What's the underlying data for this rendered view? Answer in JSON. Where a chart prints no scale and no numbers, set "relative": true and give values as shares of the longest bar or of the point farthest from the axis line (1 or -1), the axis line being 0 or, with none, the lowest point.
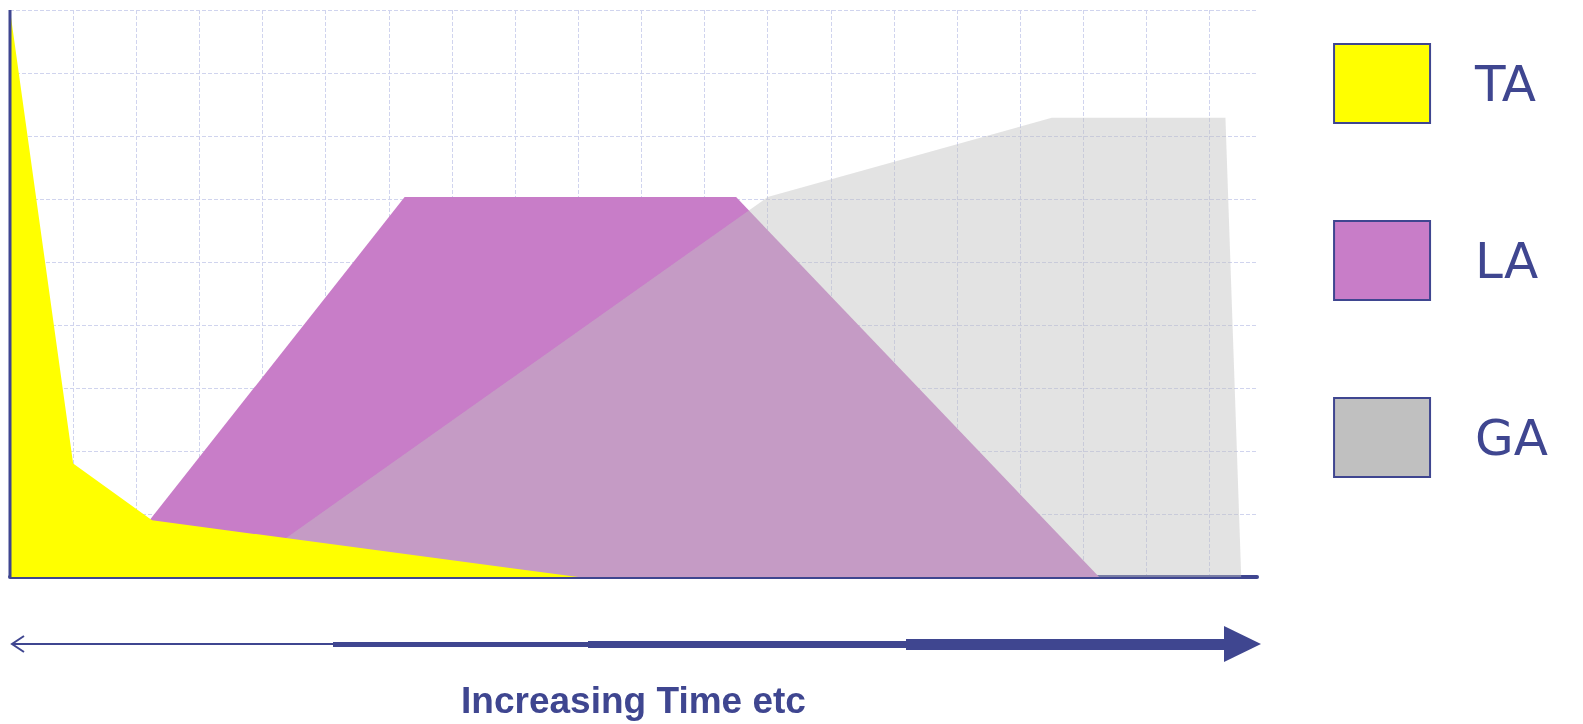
{
  "chart_data": {
    "type": "area",
    "xlabel": "Increasing Time etc",
    "relative": true,
    "grid": true,
    "legend": "right",
    "marker": "none",
    "categories": [
      null,
      null,
      null,
      null,
      null,
      null,
      null,
      null,
      null,
      null,
      null,
      null,
      null,
      null,
      null,
      null,
      null,
      null,
      null,
      null,
      null,
      null,
      null,
      null,
      null,
      null,
      null,
      null,
      null,
      null,
      null,
      null,
      null,
      null,
      null,
      null,
      null,
      null,
      null,
      null,
      null,
      null,
      null,
      null,
      null,
      null,
      null,
      null,
      null,
      null,
      null,
      null,
      null,
      null,
      null,
      null,
      null,
      null,
      null,
      null,
      null,
      null,
      null,
      null,
      null,
      null,
      null,
      null,
      null,
      null,
      null,
      null,
      null,
      null,
      null,
      null,
      null,
      null,
      null,
      null
    ],
    "series": [
      {
        "name": "TA",
        "color": "#ffff00",
        "values": [
          1,
          null,
          null,
          null,
          0.2,
          null,
          null,
          null,
          null,
          0.1,
          null,
          null,
          null,
          null,
          null,
          null,
          null,
          null,
          null,
          null,
          null,
          null,
          null,
          null,
          null,
          null,
          null,
          null,
          null,
          null,
          null,
          null,
          null,
          null,
          null,
          null,
          0,
          null,
          null,
          null,
          null,
          null,
          null,
          null,
          null,
          null,
          null,
          null,
          null,
          null,
          null,
          null,
          null,
          null,
          null,
          null,
          null,
          null,
          null,
          null,
          null,
          null,
          null,
          null,
          null,
          null,
          null,
          null,
          null,
          null,
          null,
          null,
          null,
          null,
          null,
          null,
          null,
          null,
          null,
          null
        ]
      },
      {
        "name": "LA",
        "color": "#c87dc8",
        "values": [
          null,
          null,
          null,
          null,
          null,
          null,
          0,
          null,
          null,
          null,
          null,
          null,
          null,
          null,
          null,
          null,
          null,
          null,
          null,
          null,
          null,
          null,
          null,
          null,
          null,
          0.67,
          null,
          null,
          null,
          null,
          null,
          null,
          null,
          null,
          null,
          null,
          null,
          null,
          null,
          null,
          null,
          null,
          null,
          null,
          null,
          null,
          0.67,
          null,
          null,
          null,
          null,
          null,
          null,
          null,
          null,
          null,
          null,
          null,
          null,
          null,
          null,
          null,
          null,
          null,
          null,
          null,
          null,
          null,
          null,
          0,
          null,
          null,
          null,
          null,
          null,
          null,
          null,
          null,
          null,
          null
        ]
      },
      {
        "name": "GA",
        "color": "#c0c0c0",
        "values": [
          null,
          null,
          null,
          null,
          null,
          null,
          null,
          null,
          null,
          null,
          null,
          null,
          null,
          null,
          0,
          null,
          null,
          null,
          null,
          null,
          null,
          null,
          null,
          null,
          null,
          null,
          null,
          null,
          null,
          null,
          null,
          null,
          null,
          null,
          null,
          null,
          null,
          null,
          null,
          null,
          null,
          null,
          null,
          null,
          null,
          null,
          null,
          null,
          0.67,
          null,
          null,
          null,
          null,
          null,
          null,
          null,
          null,
          null,
          null,
          null,
          null,
          null,
          null,
          null,
          null,
          null,
          0.81,
          null,
          null,
          null,
          null,
          null,
          null,
          null,
          null,
          null,
          null,
          0.81,
          0,
          null
        ]
      }
    ]
  }
}
